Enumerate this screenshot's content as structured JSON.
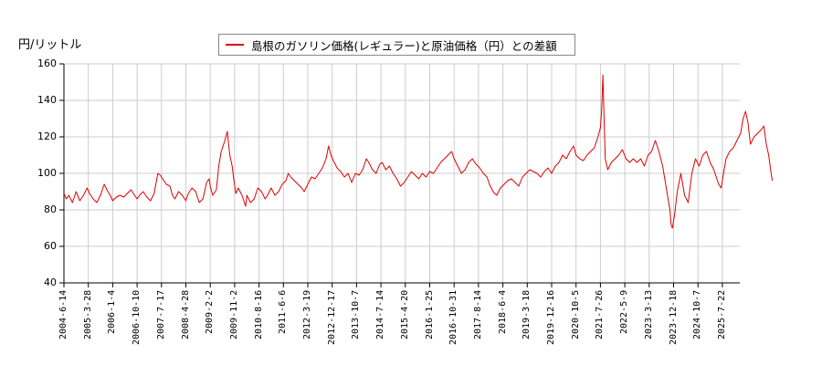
{
  "chart_data": {
    "type": "line",
    "title": "",
    "legend": [
      "島根のガソリン価格(レギュラー)と原油価格（円）との差額"
    ],
    "legend_position": "top-center",
    "ylabel": "円/リットル",
    "xlabel": "",
    "ylim": [
      40,
      160
    ],
    "yticks": [
      40,
      60,
      80,
      100,
      120,
      140,
      160
    ],
    "grid": true,
    "series_color": "#e00000",
    "xtick_labels": [
      "2004-6-14",
      "2005-3-28",
      "2006-1-4",
      "2006-10-10",
      "2007-7-17",
      "2008-4-28",
      "2009-2-2",
      "2009-11-2",
      "2010-8-16",
      "2011-6-6",
      "2012-3-19",
      "2012-12-17",
      "2013-10-7",
      "2014-7-14",
      "2015-4-20",
      "2016-1-25",
      "2016-10-31",
      "2017-8-14",
      "2018-6-4",
      "2019-3-18",
      "2019-12-16",
      "2020-10-5",
      "2021-7-26",
      "2022-5-9",
      "2023-3-13",
      "2023-12-18",
      "2024-10-7",
      "2025-7-22"
    ],
    "series": [
      {
        "name": "島根のガソリン価格(レギュラー)と原油価格（円）との差額",
        "points": [
          [
            0,
            89
          ],
          [
            0.1,
            86
          ],
          [
            0.2,
            88
          ],
          [
            0.35,
            84
          ],
          [
            0.5,
            90
          ],
          [
            0.65,
            85
          ],
          [
            0.8,
            88
          ],
          [
            0.95,
            92
          ],
          [
            1.05,
            89
          ],
          [
            1.2,
            86
          ],
          [
            1.35,
            84
          ],
          [
            1.5,
            88
          ],
          [
            1.65,
            94
          ],
          [
            1.8,
            90
          ],
          [
            1.9,
            88
          ],
          [
            2.0,
            85
          ],
          [
            2.15,
            87
          ],
          [
            2.3,
            88
          ],
          [
            2.45,
            87
          ],
          [
            2.6,
            89
          ],
          [
            2.75,
            91
          ],
          [
            2.9,
            88
          ],
          [
            3.0,
            86
          ],
          [
            3.1,
            88
          ],
          [
            3.25,
            90
          ],
          [
            3.4,
            87
          ],
          [
            3.55,
            85
          ],
          [
            3.7,
            89
          ],
          [
            3.85,
            100
          ],
          [
            3.95,
            99
          ],
          [
            4.05,
            97
          ],
          [
            4.2,
            94
          ],
          [
            4.35,
            93
          ],
          [
            4.45,
            88
          ],
          [
            4.55,
            86
          ],
          [
            4.7,
            90
          ],
          [
            4.85,
            88
          ],
          [
            5.0,
            85
          ],
          [
            5.1,
            89
          ],
          [
            5.25,
            92
          ],
          [
            5.4,
            90
          ],
          [
            5.55,
            84
          ],
          [
            5.7,
            86
          ],
          [
            5.85,
            95
          ],
          [
            5.95,
            97
          ],
          [
            6.0,
            93
          ],
          [
            6.1,
            88
          ],
          [
            6.25,
            91
          ],
          [
            6.35,
            104
          ],
          [
            6.45,
            112
          ],
          [
            6.6,
            118
          ],
          [
            6.7,
            123
          ],
          [
            6.8,
            110
          ],
          [
            6.9,
            104
          ],
          [
            6.95,
            98
          ],
          [
            7.05,
            89
          ],
          [
            7.15,
            92
          ],
          [
            7.3,
            88
          ],
          [
            7.45,
            82
          ],
          [
            7.5,
            88
          ],
          [
            7.65,
            84
          ],
          [
            7.8,
            86
          ],
          [
            7.95,
            92
          ],
          [
            8.1,
            90
          ],
          [
            8.25,
            86
          ],
          [
            8.35,
            88
          ],
          [
            8.5,
            92
          ],
          [
            8.65,
            88
          ],
          [
            8.8,
            90
          ],
          [
            8.95,
            94
          ],
          [
            9.1,
            96
          ],
          [
            9.2,
            100
          ],
          [
            9.3,
            98
          ],
          [
            9.45,
            96
          ],
          [
            9.6,
            94
          ],
          [
            9.75,
            92
          ],
          [
            9.85,
            90
          ],
          [
            10.0,
            94
          ],
          [
            10.15,
            98
          ],
          [
            10.3,
            97
          ],
          [
            10.45,
            100
          ],
          [
            10.6,
            103
          ],
          [
            10.75,
            108
          ],
          [
            10.85,
            115
          ],
          [
            10.95,
            110
          ],
          [
            11.05,
            107
          ],
          [
            11.2,
            103
          ],
          [
            11.35,
            101
          ],
          [
            11.5,
            98
          ],
          [
            11.65,
            100
          ],
          [
            11.8,
            95
          ],
          [
            11.95,
            100
          ],
          [
            12.1,
            99
          ],
          [
            12.25,
            102
          ],
          [
            12.4,
            108
          ],
          [
            12.5,
            106
          ],
          [
            12.65,
            102
          ],
          [
            12.8,
            100
          ],
          [
            12.95,
            105
          ],
          [
            13.05,
            106
          ],
          [
            13.2,
            102
          ],
          [
            13.35,
            104
          ],
          [
            13.5,
            100
          ],
          [
            13.65,
            97
          ],
          [
            13.8,
            93
          ],
          [
            13.95,
            95
          ],
          [
            14.1,
            98
          ],
          [
            14.25,
            101
          ],
          [
            14.4,
            99
          ],
          [
            14.55,
            97
          ],
          [
            14.7,
            100
          ],
          [
            14.85,
            98
          ],
          [
            15.0,
            101
          ],
          [
            15.15,
            100
          ],
          [
            15.3,
            103
          ],
          [
            15.45,
            106
          ],
          [
            15.6,
            108
          ],
          [
            15.75,
            110
          ],
          [
            15.9,
            112
          ],
          [
            16.0,
            108
          ],
          [
            16.15,
            104
          ],
          [
            16.3,
            100
          ],
          [
            16.45,
            102
          ],
          [
            16.6,
            106
          ],
          [
            16.75,
            108
          ],
          [
            16.9,
            105
          ],
          [
            17.05,
            103
          ],
          [
            17.2,
            100
          ],
          [
            17.35,
            98
          ],
          [
            17.45,
            94
          ],
          [
            17.6,
            90
          ],
          [
            17.75,
            88
          ],
          [
            17.9,
            92
          ],
          [
            18.05,
            94
          ],
          [
            18.2,
            96
          ],
          [
            18.35,
            97
          ],
          [
            18.5,
            95
          ],
          [
            18.65,
            93
          ],
          [
            18.8,
            98
          ],
          [
            18.95,
            100
          ],
          [
            19.1,
            102
          ],
          [
            19.25,
            101
          ],
          [
            19.4,
            100
          ],
          [
            19.55,
            98
          ],
          [
            19.7,
            101
          ],
          [
            19.85,
            103
          ],
          [
            20.0,
            100
          ],
          [
            20.15,
            104
          ],
          [
            20.3,
            106
          ],
          [
            20.45,
            110
          ],
          [
            20.6,
            108
          ],
          [
            20.75,
            112
          ],
          [
            20.9,
            115
          ],
          [
            21.0,
            110
          ],
          [
            21.15,
            108
          ],
          [
            21.3,
            107
          ],
          [
            21.45,
            110
          ],
          [
            21.6,
            112
          ],
          [
            21.75,
            114
          ],
          [
            21.9,
            120
          ],
          [
            22.0,
            125
          ],
          [
            22.05,
            134
          ],
          [
            22.1,
            154
          ],
          [
            22.15,
            130
          ],
          [
            22.2,
            108
          ],
          [
            22.3,
            102
          ],
          [
            22.45,
            106
          ],
          [
            22.6,
            108
          ],
          [
            22.75,
            110
          ],
          [
            22.9,
            113
          ],
          [
            23.05,
            108
          ],
          [
            23.2,
            106
          ],
          [
            23.35,
            108
          ],
          [
            23.5,
            106
          ],
          [
            23.65,
            108
          ],
          [
            23.8,
            104
          ],
          [
            23.95,
            110
          ],
          [
            24.1,
            112
          ],
          [
            24.25,
            118
          ],
          [
            24.4,
            112
          ],
          [
            24.55,
            104
          ],
          [
            24.65,
            96
          ],
          [
            24.75,
            88
          ],
          [
            24.85,
            80
          ],
          [
            24.9,
            72
          ],
          [
            24.95,
            70
          ],
          [
            25.05,
            78
          ],
          [
            25.15,
            90
          ],
          [
            25.3,
            100
          ],
          [
            25.45,
            88
          ],
          [
            25.6,
            84
          ],
          [
            25.75,
            100
          ],
          [
            25.9,
            108
          ],
          [
            26.05,
            104
          ],
          [
            26.2,
            110
          ],
          [
            26.35,
            112
          ],
          [
            26.5,
            106
          ],
          [
            26.65,
            102
          ],
          [
            26.75,
            98
          ],
          [
            26.85,
            94
          ],
          [
            26.95,
            92
          ],
          [
            27.05,
            100
          ],
          [
            27.15,
            108
          ],
          [
            27.3,
            112
          ],
          [
            27.45,
            114
          ],
          [
            27.6,
            118
          ],
          [
            27.75,
            122
          ],
          [
            27.85,
            130
          ],
          [
            27.95,
            134
          ],
          [
            28.05,
            128
          ],
          [
            28.15,
            116
          ],
          [
            28.3,
            120
          ],
          [
            28.45,
            122
          ],
          [
            28.6,
            124
          ],
          [
            28.7,
            126
          ],
          [
            28.8,
            116
          ],
          [
            28.9,
            110
          ],
          [
            29.0,
            100
          ],
          [
            29.05,
            96
          ]
        ]
      }
    ],
    "annotations": []
  },
  "labels": {
    "y_unit": "円/リットル",
    "legend_text": "島根のガソリン価格(レギュラー)と原油価格（円）との差額"
  }
}
